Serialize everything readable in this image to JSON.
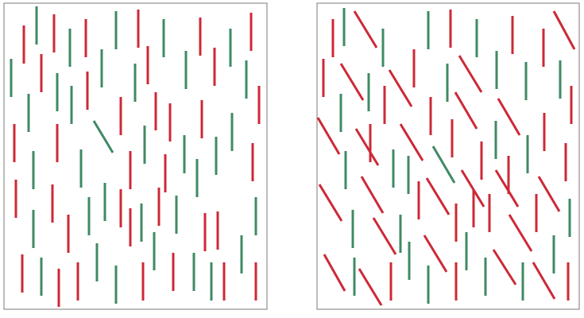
{
  "colors": {
    "red": "#cc2936",
    "green": "#3f8a63",
    "frame": "#7a7a7a",
    "background": "#ffffff"
  },
  "panels": [
    {
      "name": "left-panel",
      "bars": [
        {
          "x": 46,
          "y1": 8,
          "y2": 56,
          "c": "green"
        },
        {
          "x": 30,
          "y1": 32,
          "y2": 80,
          "c": "red"
        },
        {
          "x": 68,
          "y1": 18,
          "y2": 66,
          "c": "red"
        },
        {
          "x": 88,
          "y1": 36,
          "y2": 84,
          "c": "green"
        },
        {
          "x": 108,
          "y1": 24,
          "y2": 72,
          "c": "red"
        },
        {
          "x": 146,
          "y1": 14,
          "y2": 62,
          "c": "green"
        },
        {
          "x": 174,
          "y1": 12,
          "y2": 60,
          "c": "red"
        },
        {
          "x": 206,
          "y1": 24,
          "y2": 72,
          "c": "green"
        },
        {
          "x": 252,
          "y1": 22,
          "y2": 70,
          "c": "red"
        },
        {
          "x": 290,
          "y1": 36,
          "y2": 84,
          "c": "green"
        },
        {
          "x": 316,
          "y1": 16,
          "y2": 64,
          "c": "red"
        },
        {
          "x": 14,
          "y1": 74,
          "y2": 122,
          "c": "green"
        },
        {
          "x": 52,
          "y1": 68,
          "y2": 116,
          "c": "red"
        },
        {
          "x": 72,
          "y1": 92,
          "y2": 140,
          "c": "green"
        },
        {
          "x": 128,
          "y1": 62,
          "y2": 110,
          "c": "green"
        },
        {
          "x": 110,
          "y1": 90,
          "y2": 138,
          "c": "red"
        },
        {
          "x": 186,
          "y1": 58,
          "y2": 106,
          "c": "red"
        },
        {
          "x": 170,
          "y1": 80,
          "y2": 128,
          "c": "green"
        },
        {
          "x": 234,
          "y1": 64,
          "y2": 112,
          "c": "green"
        },
        {
          "x": 270,
          "y1": 60,
          "y2": 108,
          "c": "red"
        },
        {
          "x": 310,
          "y1": 76,
          "y2": 124,
          "c": "green"
        },
        {
          "x": 36,
          "y1": 118,
          "y2": 166,
          "c": "green"
        },
        {
          "x": 90,
          "y1": 108,
          "y2": 156,
          "c": "green"
        },
        {
          "x": 152,
          "y1": 122,
          "y2": 170,
          "c": "red"
        },
        {
          "x": 196,
          "y1": 116,
          "y2": 164,
          "c": "red"
        },
        {
          "x": 214,
          "y1": 130,
          "y2": 178,
          "c": "red"
        },
        {
          "x": 254,
          "y1": 126,
          "y2": 174,
          "c": "red"
        },
        {
          "x": 292,
          "y1": 142,
          "y2": 190,
          "c": "green"
        },
        {
          "x": 326,
          "y1": 108,
          "y2": 156,
          "c": "red"
        },
        {
          "x": 18,
          "y1": 156,
          "y2": 204,
          "c": "red"
        },
        {
          "x": 72,
          "y1": 156,
          "y2": 204,
          "c": "red"
        },
        {
          "x": 182,
          "y1": 158,
          "y2": 206,
          "c": "green"
        },
        {
          "x": 232,
          "y1": 170,
          "y2": 218,
          "c": "green"
        },
        {
          "x": 272,
          "y1": 172,
          "y2": 220,
          "c": "green"
        },
        {
          "x": 318,
          "y1": 180,
          "y2": 228,
          "c": "red"
        },
        {
          "x": 42,
          "y1": 190,
          "y2": 238,
          "c": "green"
        },
        {
          "x": 102,
          "y1": 188,
          "y2": 236,
          "c": "green"
        },
        {
          "x": 164,
          "y1": 190,
          "y2": 238,
          "c": "red"
        },
        {
          "x": 208,
          "y1": 194,
          "y2": 242,
          "c": "red"
        },
        {
          "x": 248,
          "y1": 200,
          "y2": 248,
          "c": "green"
        },
        {
          "x": 20,
          "y1": 226,
          "y2": 274,
          "c": "red"
        },
        {
          "x": 66,
          "y1": 232,
          "y2": 280,
          "c": "red"
        },
        {
          "x": 132,
          "y1": 230,
          "y2": 278,
          "c": "green"
        },
        {
          "x": 152,
          "y1": 238,
          "y2": 286,
          "c": "red"
        },
        {
          "x": 112,
          "y1": 248,
          "y2": 296,
          "c": "green"
        },
        {
          "x": 200,
          "y1": 236,
          "y2": 284,
          "c": "red"
        },
        {
          "x": 222,
          "y1": 246,
          "y2": 294,
          "c": "green"
        },
        {
          "x": 178,
          "y1": 256,
          "y2": 304,
          "c": "green"
        },
        {
          "x": 274,
          "y1": 266,
          "y2": 314,
          "c": "red"
        },
        {
          "x": 322,
          "y1": 248,
          "y2": 296,
          "c": "green"
        },
        {
          "x": 42,
          "y1": 264,
          "y2": 312,
          "c": "green"
        },
        {
          "x": 86,
          "y1": 270,
          "y2": 318,
          "c": "red"
        },
        {
          "x": 164,
          "y1": 262,
          "y2": 310,
          "c": "red"
        },
        {
          "x": 258,
          "y1": 268,
          "y2": 316,
          "c": "red"
        },
        {
          "x": 194,
          "y1": 292,
          "y2": 340,
          "c": "green"
        },
        {
          "x": 304,
          "y1": 296,
          "y2": 344,
          "c": "green"
        },
        {
          "x": 28,
          "y1": 320,
          "y2": 368,
          "c": "red"
        },
        {
          "x": 52,
          "y1": 324,
          "y2": 372,
          "c": "green"
        },
        {
          "x": 74,
          "y1": 338,
          "y2": 386,
          "c": "red"
        },
        {
          "x": 98,
          "y1": 330,
          "y2": 378,
          "c": "red"
        },
        {
          "x": 122,
          "y1": 306,
          "y2": 354,
          "c": "green"
        },
        {
          "x": 146,
          "y1": 334,
          "y2": 382,
          "c": "green"
        },
        {
          "x": 180,
          "y1": 330,
          "y2": 378,
          "c": "red"
        },
        {
          "x": 218,
          "y1": 318,
          "y2": 366,
          "c": "red"
        },
        {
          "x": 244,
          "y1": 318,
          "y2": 366,
          "c": "green"
        },
        {
          "x": 266,
          "y1": 330,
          "y2": 378,
          "c": "green"
        },
        {
          "x": 282,
          "y1": 330,
          "y2": 378,
          "c": "red"
        },
        {
          "x": 322,
          "y1": 330,
          "y2": 378,
          "c": "red"
        }
      ],
      "diagonals": [
        {
          "x1": 118,
          "y1": 152,
          "x2": 142,
          "y2": 192,
          "c": "green"
        }
      ]
    },
    {
      "name": "right-panel",
      "bars": [
        {
          "x": 433,
          "y1": 10,
          "y2": 58,
          "c": "green"
        },
        {
          "x": 419,
          "y1": 24,
          "y2": 72,
          "c": "red"
        },
        {
          "x": 482,
          "y1": 36,
          "y2": 84,
          "c": "green"
        },
        {
          "x": 539,
          "y1": 14,
          "y2": 62,
          "c": "green"
        },
        {
          "x": 567,
          "y1": 12,
          "y2": 60,
          "c": "red"
        },
        {
          "x": 600,
          "y1": 24,
          "y2": 72,
          "c": "green"
        },
        {
          "x": 645,
          "y1": 20,
          "y2": 68,
          "c": "red"
        },
        {
          "x": 684,
          "y1": 36,
          "y2": 84,
          "c": "red"
        },
        {
          "x": 407,
          "y1": 74,
          "y2": 122,
          "c": "red"
        },
        {
          "x": 521,
          "y1": 62,
          "y2": 110,
          "c": "red"
        },
        {
          "x": 464,
          "y1": 92,
          "y2": 140,
          "c": "green"
        },
        {
          "x": 563,
          "y1": 80,
          "y2": 128,
          "c": "green"
        },
        {
          "x": 625,
          "y1": 64,
          "y2": 112,
          "c": "green"
        },
        {
          "x": 662,
          "y1": 78,
          "y2": 126,
          "c": "green"
        },
        {
          "x": 705,
          "y1": 76,
          "y2": 124,
          "c": "green"
        },
        {
          "x": 429,
          "y1": 118,
          "y2": 166,
          "c": "green"
        },
        {
          "x": 484,
          "y1": 108,
          "y2": 156,
          "c": "red"
        },
        {
          "x": 542,
          "y1": 122,
          "y2": 170,
          "c": "red"
        },
        {
          "x": 719,
          "y1": 108,
          "y2": 156,
          "c": "red"
        },
        {
          "x": 466,
          "y1": 156,
          "y2": 204,
          "c": "red"
        },
        {
          "x": 569,
          "y1": 150,
          "y2": 198,
          "c": "red"
        },
        {
          "x": 624,
          "y1": 152,
          "y2": 200,
          "c": "green"
        },
        {
          "x": 664,
          "y1": 170,
          "y2": 218,
          "c": "green"
        },
        {
          "x": 685,
          "y1": 142,
          "y2": 190,
          "c": "red"
        },
        {
          "x": 712,
          "y1": 180,
          "y2": 228,
          "c": "red"
        },
        {
          "x": 435,
          "y1": 190,
          "y2": 238,
          "c": "green"
        },
        {
          "x": 495,
          "y1": 188,
          "y2": 236,
          "c": "green"
        },
        {
          "x": 514,
          "y1": 196,
          "y2": 244,
          "c": "green"
        },
        {
          "x": 606,
          "y1": 178,
          "y2": 226,
          "c": "red"
        },
        {
          "x": 640,
          "y1": 196,
          "y2": 244,
          "c": "red"
        },
        {
          "x": 527,
          "y1": 228,
          "y2": 276,
          "c": "red"
        },
        {
          "x": 574,
          "y1": 256,
          "y2": 304,
          "c": "red"
        },
        {
          "x": 596,
          "y1": 238,
          "y2": 286,
          "c": "red"
        },
        {
          "x": 616,
          "y1": 244,
          "y2": 292,
          "c": "red"
        },
        {
          "x": 675,
          "y1": 244,
          "y2": 292,
          "c": "red"
        },
        {
          "x": 717,
          "y1": 250,
          "y2": 298,
          "c": "green"
        },
        {
          "x": 444,
          "y1": 264,
          "y2": 312,
          "c": "green"
        },
        {
          "x": 504,
          "y1": 270,
          "y2": 318,
          "c": "green"
        },
        {
          "x": 587,
          "y1": 292,
          "y2": 340,
          "c": "green"
        },
        {
          "x": 697,
          "y1": 296,
          "y2": 344,
          "c": "green"
        },
        {
          "x": 446,
          "y1": 324,
          "y2": 372,
          "c": "green"
        },
        {
          "x": 492,
          "y1": 330,
          "y2": 378,
          "c": "red"
        },
        {
          "x": 515,
          "y1": 304,
          "y2": 352,
          "c": "green"
        },
        {
          "x": 539,
          "y1": 334,
          "y2": 382,
          "c": "green"
        },
        {
          "x": 574,
          "y1": 330,
          "y2": 378,
          "c": "red"
        },
        {
          "x": 611,
          "y1": 324,
          "y2": 372,
          "c": "green"
        },
        {
          "x": 658,
          "y1": 330,
          "y2": 378,
          "c": "green"
        },
        {
          "x": 715,
          "y1": 330,
          "y2": 378,
          "c": "red"
        }
      ],
      "diagonals": [
        {
          "x1": 446,
          "y1": 14,
          "x2": 474,
          "y2": 60,
          "c": "red"
        },
        {
          "x1": 697,
          "y1": 14,
          "x2": 723,
          "y2": 62,
          "c": "red"
        },
        {
          "x1": 429,
          "y1": 80,
          "x2": 457,
          "y2": 126,
          "c": "red"
        },
        {
          "x1": 490,
          "y1": 88,
          "x2": 518,
          "y2": 134,
          "c": "red"
        },
        {
          "x1": 578,
          "y1": 70,
          "x2": 606,
          "y2": 116,
          "c": "red"
        },
        {
          "x1": 400,
          "y1": 148,
          "x2": 427,
          "y2": 194,
          "c": "red"
        },
        {
          "x1": 448,
          "y1": 162,
          "x2": 476,
          "y2": 208,
          "c": "red"
        },
        {
          "x1": 504,
          "y1": 156,
          "x2": 532,
          "y2": 202,
          "c": "red"
        },
        {
          "x1": 573,
          "y1": 116,
          "x2": 600,
          "y2": 162,
          "c": "red"
        },
        {
          "x1": 627,
          "y1": 124,
          "x2": 654,
          "y2": 170,
          "c": "red"
        },
        {
          "x1": 545,
          "y1": 184,
          "x2": 572,
          "y2": 230,
          "c": "green"
        },
        {
          "x1": 402,
          "y1": 232,
          "x2": 430,
          "y2": 278,
          "c": "red"
        },
        {
          "x1": 455,
          "y1": 222,
          "x2": 482,
          "y2": 268,
          "c": "red"
        },
        {
          "x1": 537,
          "y1": 224,
          "x2": 565,
          "y2": 270,
          "c": "red"
        },
        {
          "x1": 581,
          "y1": 214,
          "x2": 609,
          "y2": 260,
          "c": "red"
        },
        {
          "x1": 624,
          "y1": 214,
          "x2": 652,
          "y2": 260,
          "c": "red"
        },
        {
          "x1": 678,
          "y1": 222,
          "x2": 704,
          "y2": 266,
          "c": "red"
        },
        {
          "x1": 470,
          "y1": 274,
          "x2": 498,
          "y2": 320,
          "c": "red"
        },
        {
          "x1": 534,
          "y1": 296,
          "x2": 562,
          "y2": 342,
          "c": "red"
        },
        {
          "x1": 641,
          "y1": 270,
          "x2": 669,
          "y2": 316,
          "c": "red"
        },
        {
          "x1": 408,
          "y1": 320,
          "x2": 434,
          "y2": 366,
          "c": "red"
        },
        {
          "x1": 452,
          "y1": 338,
          "x2": 480,
          "y2": 384,
          "c": "red"
        },
        {
          "x1": 621,
          "y1": 314,
          "x2": 649,
          "y2": 358,
          "c": "red"
        },
        {
          "x1": 671,
          "y1": 330,
          "x2": 698,
          "y2": 376,
          "c": "red"
        }
      ]
    }
  ]
}
